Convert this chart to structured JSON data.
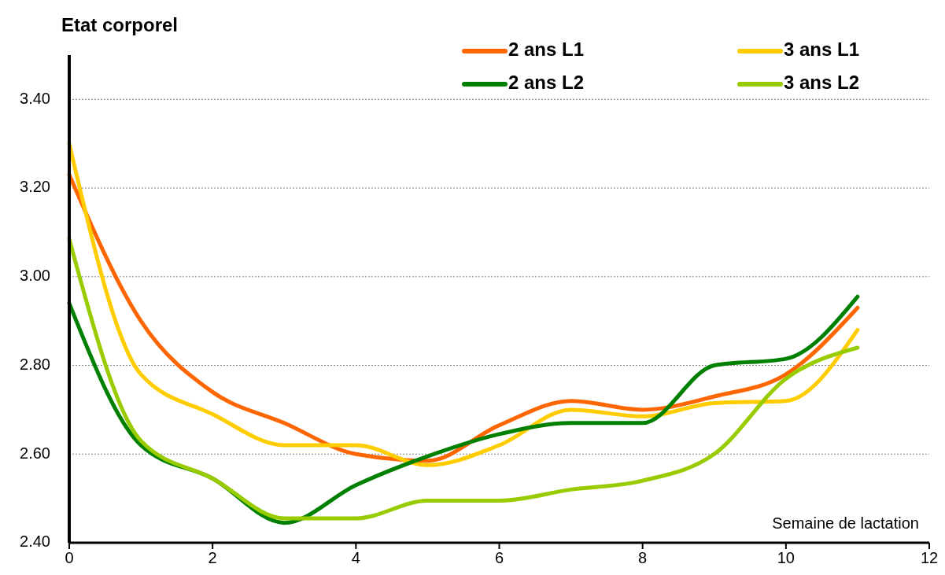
{
  "chart_data": {
    "type": "line",
    "title": "Etat corporel",
    "xlabel": "Semaine de lactation",
    "x": [
      0,
      1,
      2,
      3,
      4,
      5,
      6,
      7,
      8,
      9,
      10,
      11
    ],
    "series": [
      {
        "name": "2 ans L1",
        "color": "#ff6600",
        "values": [
          3.23,
          2.9,
          2.74,
          2.67,
          2.6,
          2.585,
          2.665,
          2.72,
          2.7,
          2.73,
          2.78,
          2.93
        ]
      },
      {
        "name": "3 ans L1",
        "color": "#ffcc00",
        "values": [
          3.3,
          2.78,
          2.69,
          2.62,
          2.62,
          2.575,
          2.62,
          2.7,
          2.685,
          2.715,
          2.72,
          2.88
        ]
      },
      {
        "name": "2 ans L2",
        "color": "#008000",
        "values": [
          2.94,
          2.62,
          2.545,
          2.445,
          2.53,
          2.595,
          2.645,
          2.67,
          2.67,
          2.8,
          2.815,
          2.955
        ]
      },
      {
        "name": "3 ans L2",
        "color": "#99cc00",
        "values": [
          3.085,
          2.63,
          2.545,
          2.455,
          2.455,
          2.495,
          2.495,
          2.52,
          2.54,
          2.6,
          2.77,
          2.84
        ]
      }
    ],
    "xlim": [
      0,
      12
    ],
    "xticks": [
      0,
      2,
      4,
      6,
      8,
      10,
      12
    ],
    "ylim": [
      2.4,
      3.5
    ],
    "yticks": [
      {
        "value": 2.4,
        "label": "2.40"
      },
      {
        "value": 2.6,
        "label": "2.60"
      },
      {
        "value": 2.8,
        "label": "2.80"
      },
      {
        "value": 3.0,
        "label": "3.00"
      },
      {
        "value": 3.2,
        "label": "3.20"
      },
      {
        "value": 3.4,
        "label": "3.40"
      }
    ],
    "grid": "y",
    "legend": "top right",
    "marker": "none",
    "line_style": "solid"
  }
}
